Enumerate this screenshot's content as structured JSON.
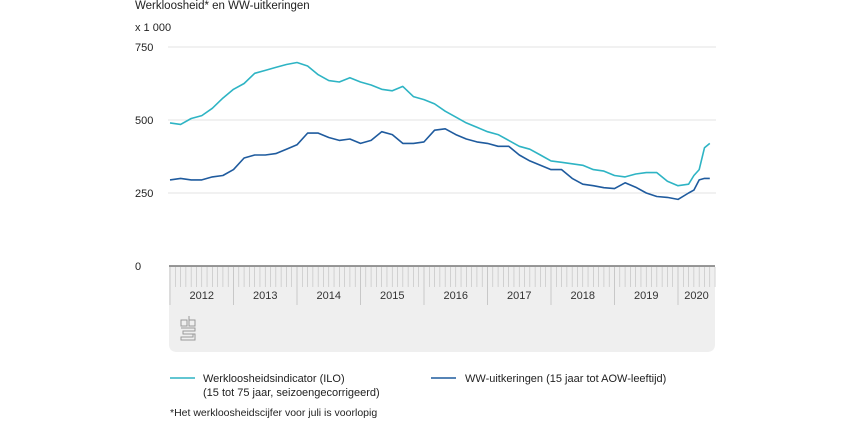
{
  "chart_data": {
    "type": "line",
    "title": "Werkloosheid* en WW-uitkeringen",
    "ylabel": "x 1 000",
    "ylim": [
      0,
      750
    ],
    "yticks": [
      "0",
      "250",
      "500",
      "750"
    ],
    "xtick_labels": [
      "2012",
      "2013",
      "2014",
      "2015",
      "2016",
      "2017",
      "2018",
      "2019",
      "2020"
    ],
    "grid": true,
    "legend_position": "bottom",
    "footnote": "*Het werkloosheidscijfer voor juli is voorlopig",
    "x": [
      "2012-01",
      "2012-03",
      "2012-05",
      "2012-07",
      "2012-09",
      "2012-11",
      "2013-01",
      "2013-03",
      "2013-05",
      "2013-07",
      "2013-09",
      "2013-11",
      "2014-01",
      "2014-03",
      "2014-05",
      "2014-07",
      "2014-09",
      "2014-11",
      "2015-01",
      "2015-03",
      "2015-05",
      "2015-07",
      "2015-09",
      "2015-11",
      "2016-01",
      "2016-03",
      "2016-05",
      "2016-07",
      "2016-09",
      "2016-11",
      "2017-01",
      "2017-03",
      "2017-05",
      "2017-07",
      "2017-09",
      "2017-11",
      "2018-01",
      "2018-03",
      "2018-05",
      "2018-07",
      "2018-09",
      "2018-11",
      "2019-01",
      "2019-03",
      "2019-05",
      "2019-07",
      "2019-09",
      "2019-11",
      "2020-01",
      "2020-03",
      "2020-04",
      "2020-05",
      "2020-06",
      "2020-07"
    ],
    "series": [
      {
        "name": "Werkloosheidsindicator (ILO)",
        "name_line2": "(15 tot 75 jaar, seizoengecorrigeerd)",
        "color": "#2eb4c4",
        "values": [
          490,
          485,
          505,
          515,
          540,
          575,
          605,
          625,
          660,
          670,
          680,
          690,
          697,
          685,
          655,
          635,
          630,
          645,
          630,
          620,
          605,
          600,
          615,
          580,
          570,
          555,
          530,
          510,
          490,
          475,
          460,
          450,
          430,
          410,
          400,
          380,
          360,
          355,
          350,
          345,
          330,
          325,
          310,
          305,
          315,
          320,
          320,
          290,
          275,
          280,
          310,
          330,
          405,
          420
        ]
      },
      {
        "name": "WW-uitkeringen (15 jaar tot AOW-leeftijd)",
        "color": "#1f5b9e",
        "values": [
          295,
          300,
          295,
          295,
          305,
          310,
          330,
          370,
          380,
          380,
          385,
          400,
          415,
          455,
          455,
          440,
          430,
          435,
          420,
          430,
          460,
          450,
          420,
          420,
          425,
          465,
          470,
          450,
          435,
          425,
          420,
          410,
          410,
          380,
          360,
          345,
          330,
          330,
          300,
          280,
          275,
          268,
          265,
          285,
          270,
          250,
          238,
          235,
          228,
          250,
          260,
          295,
          300,
          300
        ]
      }
    ]
  },
  "logo": "cbs"
}
